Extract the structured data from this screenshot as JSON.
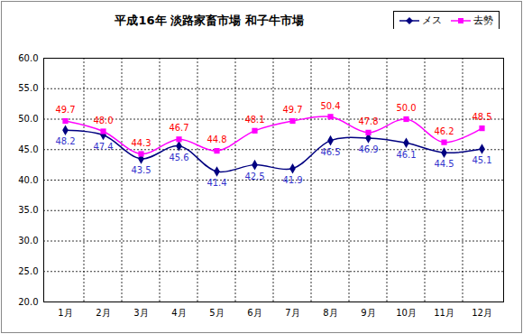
{
  "chart_data": {
    "type": "line",
    "title": "平成16年 淡路家畜市場 和子牛市場",
    "categories": [
      "1月",
      "2月",
      "3月",
      "4月",
      "5月",
      "6月",
      "7月",
      "8月",
      "9月",
      "10月",
      "11月",
      "12月"
    ],
    "series": [
      {
        "name": "メス",
        "color": "#000080",
        "marker": "diamond",
        "line_style": "solid",
        "values": [
          48.2,
          47.4,
          43.5,
          45.6,
          41.4,
          42.5,
          41.9,
          46.5,
          46.9,
          46.1,
          44.5,
          45.1
        ],
        "value_labels": [
          "48.2",
          "47.4",
          "43.5",
          "45.6",
          "41.4",
          "42.5",
          "41.9",
          "46.5",
          "46.9",
          "46.1",
          "44.5",
          "45.1"
        ]
      },
      {
        "name": "去勢",
        "color": "#ff00ff",
        "marker": "square",
        "line_style": "solid",
        "values": [
          49.7,
          48.0,
          44.3,
          46.7,
          44.8,
          48.1,
          49.7,
          50.4,
          47.8,
          50.0,
          46.2,
          48.5
        ],
        "value_labels": [
          "49.7",
          "48.0",
          "44.3",
          "46.7",
          "44.8",
          "48.1",
          "49.7",
          "50.4",
          "47.8",
          "50.0",
          "46.2",
          "48.5"
        ]
      }
    ],
    "ylim": [
      20,
      60
    ],
    "yticks": [
      {
        "value": 20,
        "label": "20.0"
      },
      {
        "value": 25,
        "label": "25.0"
      },
      {
        "value": 30,
        "label": "30.0"
      },
      {
        "value": 35,
        "label": "35.0"
      },
      {
        "value": 40,
        "label": "40.0"
      },
      {
        "value": 45,
        "label": "45.0"
      },
      {
        "value": 50,
        "label": "50.0"
      },
      {
        "value": 55,
        "label": "55.0"
      },
      {
        "value": 60,
        "label": "60.0"
      }
    ],
    "grid": true,
    "legend": "top-right",
    "data_labels": true
  }
}
